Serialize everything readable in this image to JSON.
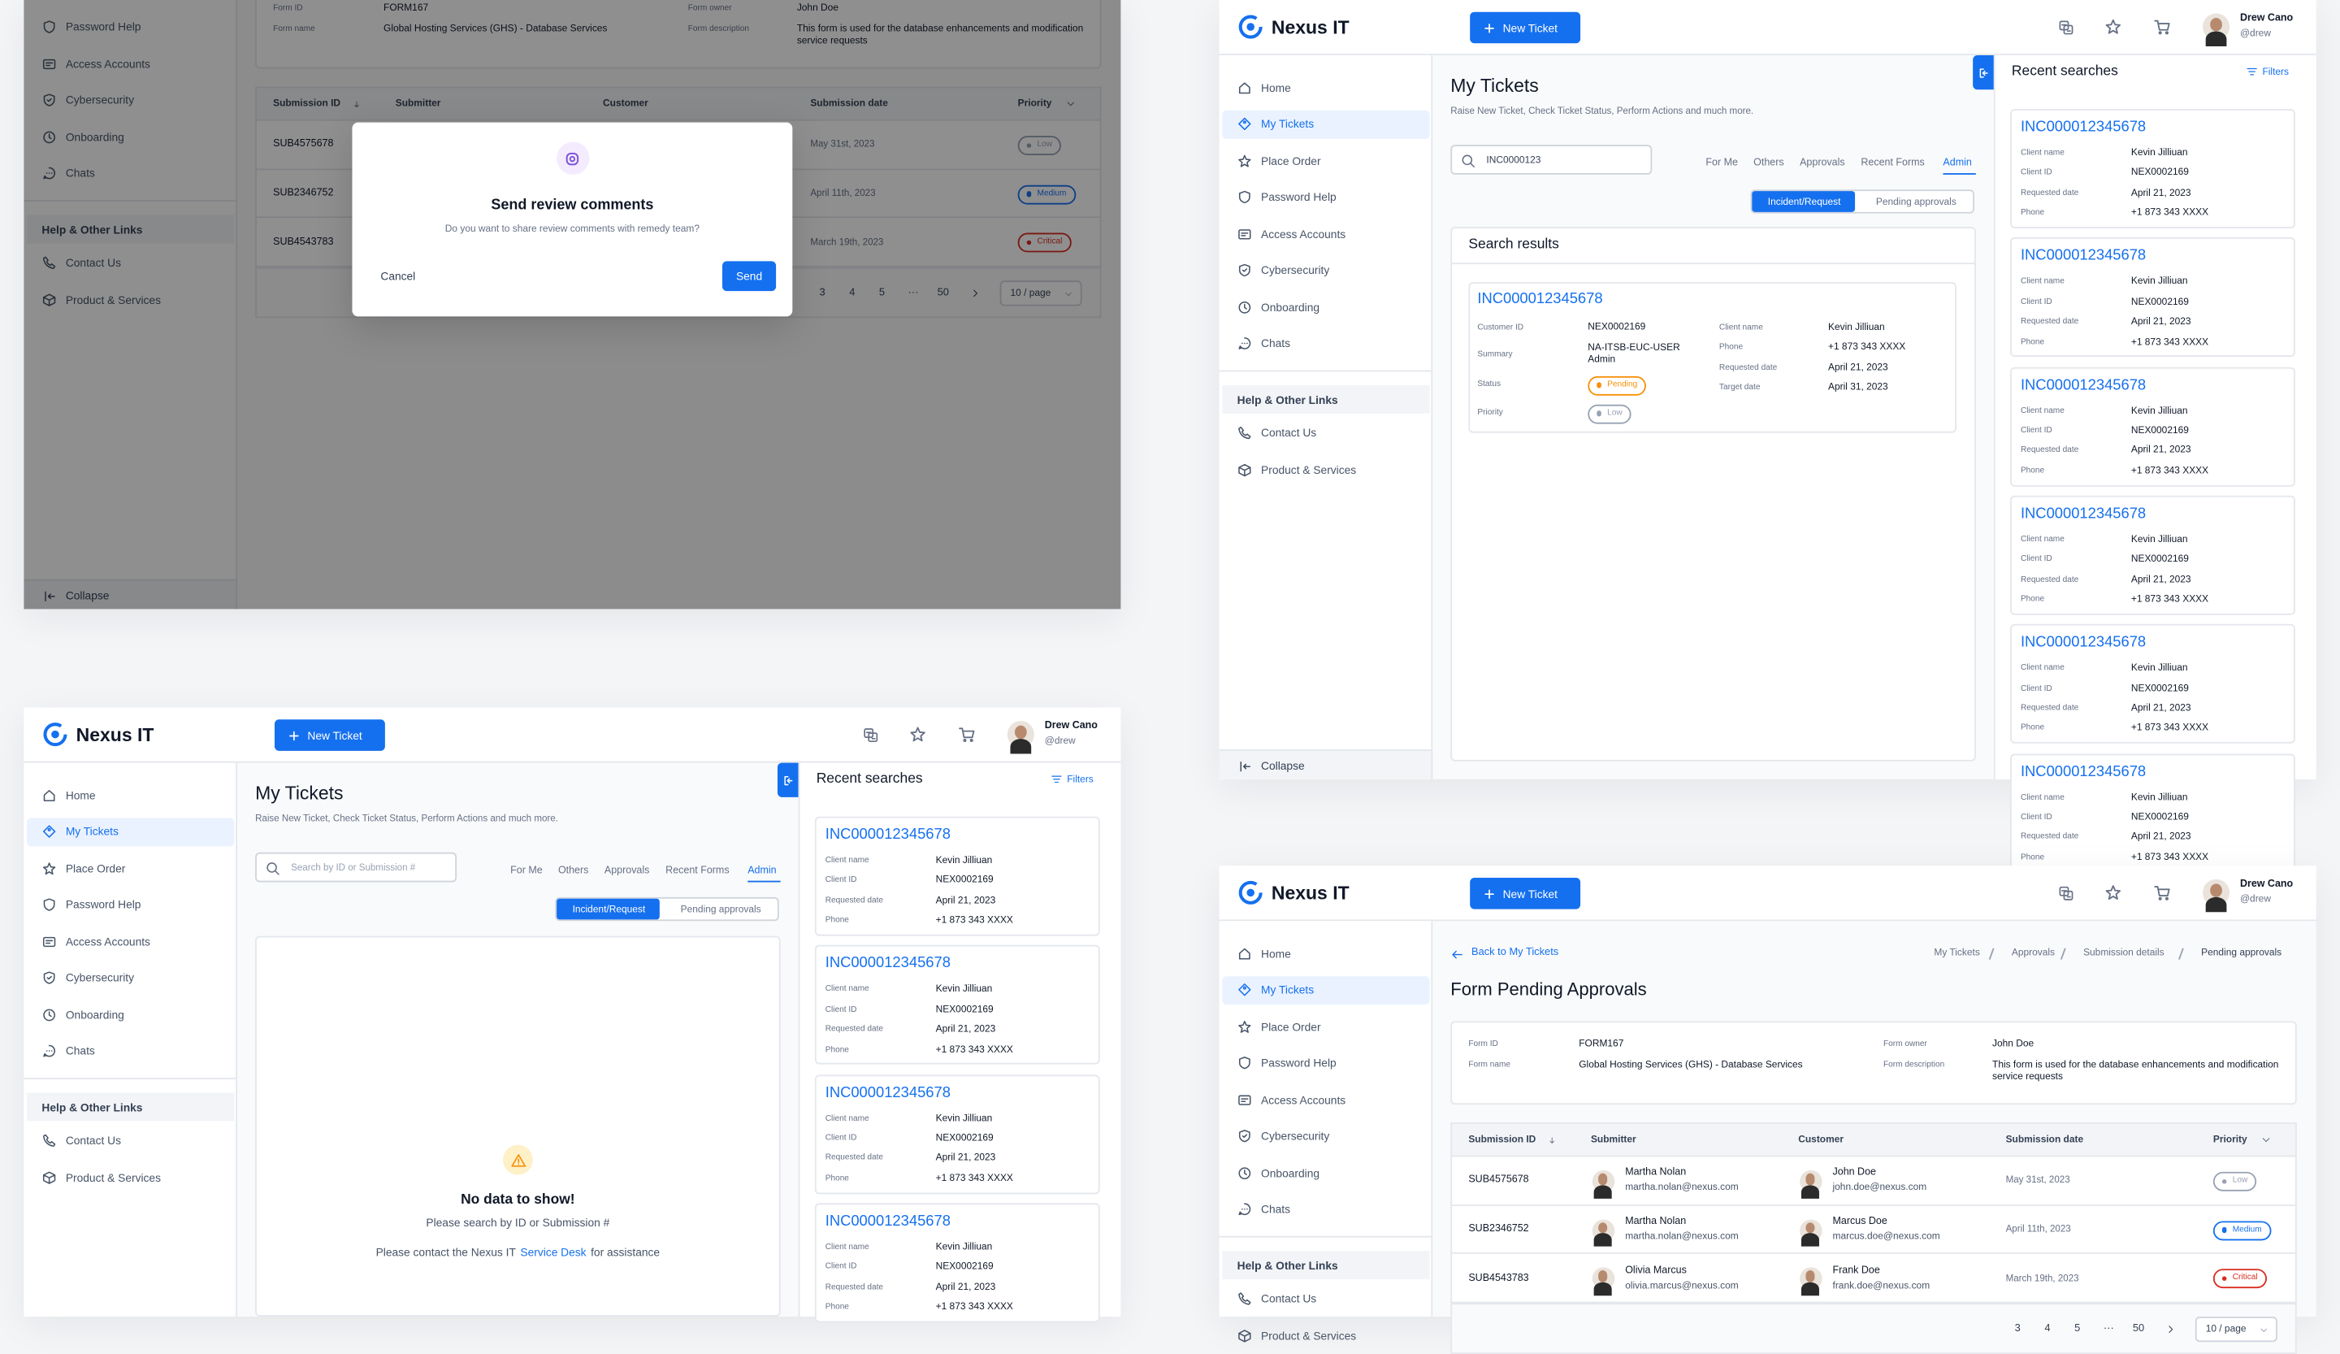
{
  "app": {
    "brand": "Nexus IT",
    "new_ticket": "New Ticket",
    "user": {
      "name": "Drew Cano",
      "handle": "@drew"
    }
  },
  "nav": {
    "items": [
      "Home",
      "My Tickets",
      "Place Order",
      "Password Help",
      "Access Accounts",
      "Cybersecurity",
      "Onboarding",
      "Chats"
    ],
    "active": 1,
    "help_title": "Help & Other Links",
    "help_items": [
      "Contact Us",
      "Product & Services"
    ],
    "collapse": "Collapse"
  },
  "tickets_page": {
    "title": "My Tickets",
    "subtitle": "Raise New Ticket, Check Ticket Status, Perform Actions and much more.",
    "search_placeholder": "Search by ID or Submission #",
    "search_value": "INC0000123",
    "tabs": [
      "For Me",
      "Others",
      "Approvals",
      "Recent Forms",
      "Admin"
    ],
    "active_tab": 4,
    "toggles": [
      "Incident/Request",
      "Pending approvals"
    ],
    "active_toggle": 0
  },
  "search_results": {
    "title": "Search results",
    "result": {
      "id": "INC000012345678",
      "left": [
        {
          "label": "Customer ID",
          "value": "NEX0002169"
        },
        {
          "label": "Summary",
          "value": "NA-ITSB-EUC-USER Admin"
        },
        {
          "label": "Status",
          "value": "Pending",
          "color": "#f79009"
        },
        {
          "label": "Priority",
          "value": "Low",
          "color": "#98a2b3"
        }
      ],
      "right": [
        {
          "label": "Client name",
          "value": "Kevin Jilliuan"
        },
        {
          "label": "Phone",
          "value": "+1 873 343 XXXX"
        },
        {
          "label": "Requested date",
          "value": "April 21, 2023"
        },
        {
          "label": "Target date",
          "value": "April 31, 2023"
        }
      ]
    }
  },
  "empty_state": {
    "title": "No data to show!",
    "hint": "Please search by ID or Submission #",
    "contact_before": "Please contact the Nexus IT",
    "contact_link": "Service Desk",
    "contact_after": "for assistance"
  },
  "recent_searches": {
    "title": "Recent searches",
    "filters": "Filters",
    "field_labels": [
      "Client name",
      "Client ID",
      "Requested date",
      "Phone"
    ],
    "cards": [
      {
        "id": "INC000012345678",
        "values": [
          "Kevin Jilliuan",
          "NEX0002169",
          "April 21, 2023",
          "+1 873 343 XXXX"
        ]
      },
      {
        "id": "INC000012345678",
        "values": [
          "Kevin Jilliuan",
          "NEX0002169",
          "April 21, 2023",
          "+1 873 343 XXXX"
        ]
      },
      {
        "id": "INC000012345678",
        "values": [
          "Kevin Jilliuan",
          "NEX0002169",
          "April 21, 2023",
          "+1 873 343 XXXX"
        ]
      },
      {
        "id": "INC000012345678",
        "values": [
          "Kevin Jilliuan",
          "NEX0002169",
          "April 21, 2023",
          "+1 873 343 XXXX"
        ]
      },
      {
        "id": "INC000012345678",
        "values": [
          "Kevin Jilliuan",
          "NEX0002169",
          "April 21, 2023",
          "+1 873 343 XXXX"
        ]
      },
      {
        "id": "INC000012345678",
        "values": [
          "Kevin Jilliuan",
          "NEX0002169",
          "April 21, 2023",
          "+1 873 343 XXXX"
        ]
      }
    ]
  },
  "form_page": {
    "back": "Back to My Tickets",
    "breadcrumbs": [
      "My Tickets",
      "Approvals",
      "Submission details",
      "Pending approvals"
    ],
    "title": "Form Pending Approvals",
    "form_info": [
      {
        "label": "Form ID",
        "value": "FORM167"
      },
      {
        "label": "Form name",
        "value": "Global Hosting Services (GHS) - Database Services"
      },
      {
        "label": "Form owner",
        "value": "John Doe"
      },
      {
        "label": "Form description",
        "value": "This form is used for the database enhancements and modification service requests"
      }
    ],
    "table": {
      "columns": [
        "Submission ID",
        "Submitter",
        "Customer",
        "Submission date",
        "Priority"
      ],
      "rows": [
        {
          "id": "SUB4575678",
          "submitter": {
            "name": "Martha Nolan",
            "email": "martha.nolan@nexus.com"
          },
          "customer": {
            "name": "John Doe",
            "email": "john.doe@nexus.com"
          },
          "date": "May 31st, 2023",
          "priority": "Low",
          "priority_color": "#98a2b3"
        },
        {
          "id": "SUB2346752",
          "submitter": {
            "name": "Martha Nolan",
            "email": "martha.nolan@nexus.com"
          },
          "customer": {
            "name": "Marcus Doe",
            "email": "marcus.doe@nexus.com"
          },
          "date": "April 11th, 2023",
          "priority": "Medium",
          "priority_color": "#1570ef"
        },
        {
          "id": "SUB4543783",
          "submitter": {
            "name": "Olivia Marcus",
            "email": "olivia.marcus@nexus.com"
          },
          "customer": {
            "name": "Frank Doe",
            "email": "frank.doe@nexus.com"
          },
          "date": "March 19th, 2023",
          "priority": "Critical",
          "priority_color": "#d92d20"
        }
      ]
    },
    "pagination": {
      "pages": [
        "3",
        "4",
        "5",
        "···",
        "50"
      ],
      "page_size": "10 / page"
    }
  },
  "modal": {
    "title": "Send review comments",
    "message": "Do you want to share review comments with remedy team?",
    "cancel": "Cancel",
    "confirm": "Send"
  }
}
